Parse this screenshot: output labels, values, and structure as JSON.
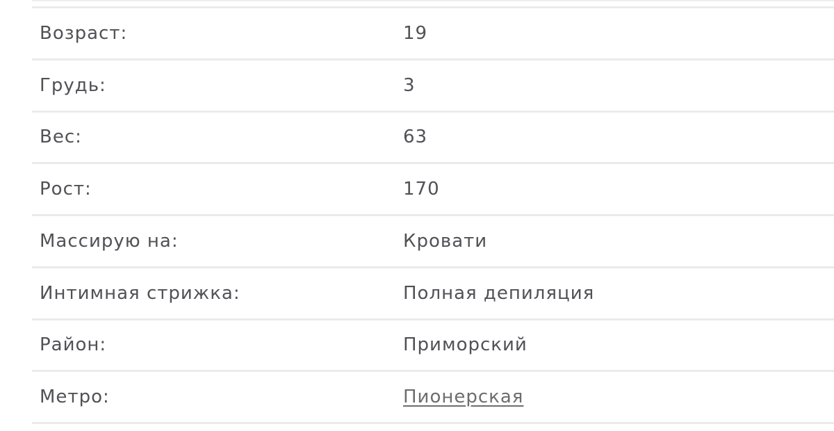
{
  "colors": {
    "text": "#515156",
    "separator": "#ebebeb",
    "link": "#6d6d70",
    "background": "#ffffff"
  },
  "table": {
    "rows": [
      {
        "label": "Возраст:",
        "value": "19"
      },
      {
        "label": "Грудь:",
        "value": "3"
      },
      {
        "label": "Вес:",
        "value": "63"
      },
      {
        "label": "Рост:",
        "value": "170"
      },
      {
        "label": "Массирую на:",
        "value": "Кровати"
      },
      {
        "label": "Интимная стрижка:",
        "value": "Полная депиляция"
      },
      {
        "label": "Район:",
        "value": "Приморский"
      },
      {
        "label": "Метро:",
        "value": "Пионерская"
      }
    ]
  }
}
